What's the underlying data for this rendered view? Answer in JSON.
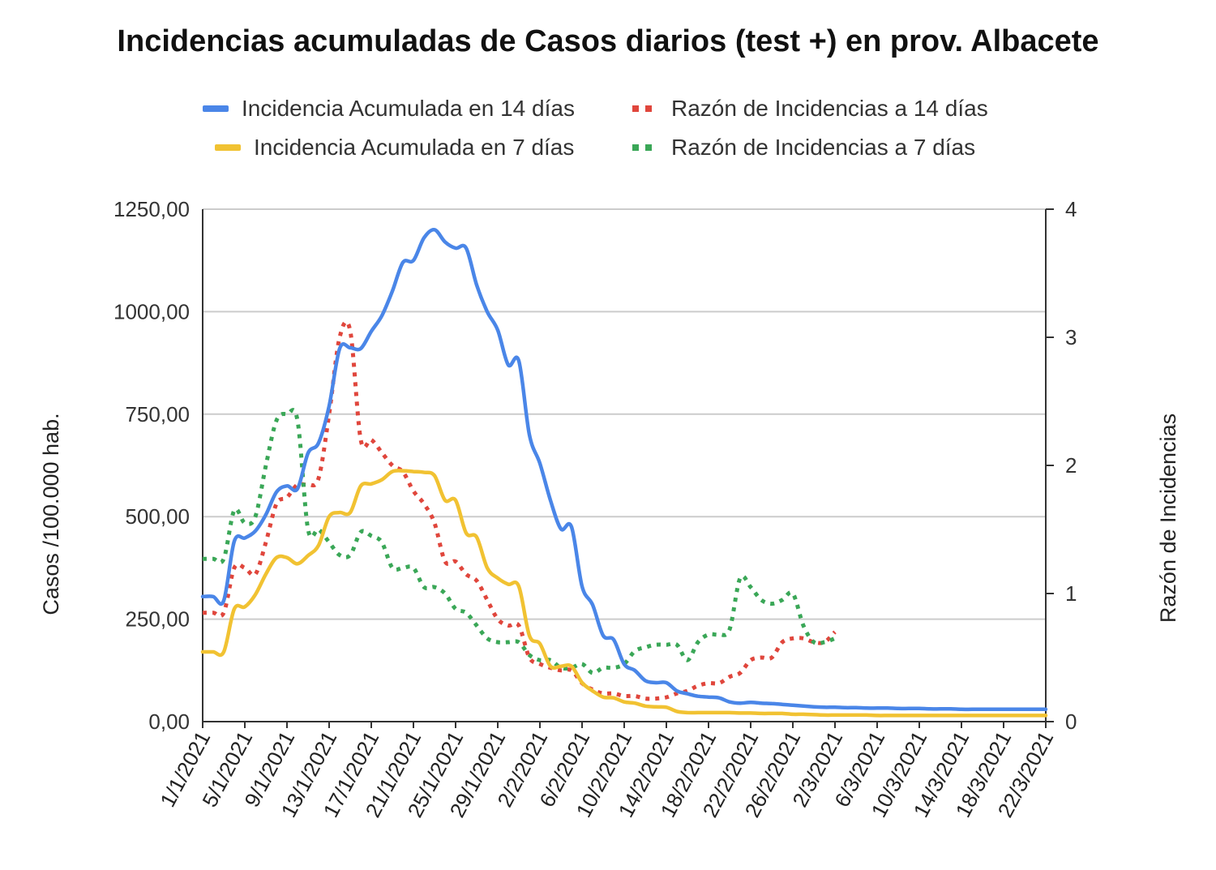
{
  "chart_data": {
    "type": "line",
    "title": "Incidencias acumuladas de Casos diarios (test +) en prov. Albacete",
    "ylabel_left": "Casos /100.000 hab.",
    "ylabel_right": "Razón de Incidencias",
    "yleft_lim": [
      0,
      1250
    ],
    "yright_lim": [
      0,
      4
    ],
    "yleft_ticks": [
      "0,00",
      "250,00",
      "500,00",
      "750,00",
      "1000,00",
      "1250,00"
    ],
    "yright_ticks": [
      "0",
      "1",
      "2",
      "3",
      "4"
    ],
    "x_tick_labels": [
      "1/1/2021",
      "5/1/2021",
      "9/1/2021",
      "13/1/2021",
      "17/1/2021",
      "21/1/2021",
      "25/1/2021",
      "29/1/2021",
      "2/2/2021",
      "6/2/2021",
      "10/2/2021",
      "14/2/2021",
      "18/2/2021",
      "22/2/2021",
      "26/2/2021",
      "2/3/2021",
      "6/3/2021",
      "10/3/2021",
      "14/3/2021",
      "18/3/2021",
      "22/3/2021"
    ],
    "x_start": "1/1/2021",
    "x_end": "22/3/2021",
    "grid": true,
    "legend_position": "top",
    "series": [
      {
        "name": "Incidencia Acumulada en 14 días",
        "axis": "left",
        "style": "solid",
        "color": "#4a86e8",
        "points": [
          [
            0,
            305
          ],
          [
            1,
            305
          ],
          [
            2,
            295
          ],
          [
            3,
            440
          ],
          [
            4,
            448
          ],
          [
            5,
            465
          ],
          [
            6,
            505
          ],
          [
            7,
            560
          ],
          [
            8,
            575
          ],
          [
            9,
            568
          ],
          [
            10,
            655
          ],
          [
            11,
            680
          ],
          [
            12,
            770
          ],
          [
            13,
            910
          ],
          [
            14,
            912
          ],
          [
            15,
            910
          ],
          [
            16,
            952
          ],
          [
            17,
            990
          ],
          [
            18,
            1050
          ],
          [
            19,
            1120
          ],
          [
            20,
            1125
          ],
          [
            21,
            1180
          ],
          [
            22,
            1200
          ],
          [
            23,
            1170
          ],
          [
            24,
            1155
          ],
          [
            25,
            1155
          ],
          [
            26,
            1065
          ],
          [
            27,
            1000
          ],
          [
            28,
            955
          ],
          [
            29,
            870
          ],
          [
            30,
            880
          ],
          [
            31,
            700
          ],
          [
            32,
            630
          ],
          [
            33,
            540
          ],
          [
            34,
            470
          ],
          [
            35,
            475
          ],
          [
            36,
            330
          ],
          [
            37,
            285
          ],
          [
            38,
            210
          ],
          [
            39,
            200
          ],
          [
            40,
            140
          ],
          [
            41,
            125
          ],
          [
            42,
            100
          ],
          [
            43,
            95
          ],
          [
            44,
            95
          ],
          [
            45,
            75
          ],
          [
            46,
            68
          ],
          [
            47,
            62
          ],
          [
            48,
            60
          ],
          [
            49,
            58
          ],
          [
            50,
            48
          ],
          [
            51,
            45
          ],
          [
            52,
            47
          ],
          [
            53,
            45
          ],
          [
            54,
            44
          ],
          [
            55,
            42
          ],
          [
            56,
            40
          ],
          [
            57,
            38
          ],
          [
            58,
            36
          ],
          [
            59,
            35
          ],
          [
            60,
            35
          ],
          [
            61,
            34
          ],
          [
            62,
            34
          ],
          [
            63,
            33
          ],
          [
            64,
            33
          ],
          [
            65,
            33
          ],
          [
            66,
            32
          ],
          [
            67,
            32
          ],
          [
            68,
            32
          ],
          [
            69,
            31
          ],
          [
            70,
            31
          ],
          [
            71,
            31
          ],
          [
            72,
            30
          ],
          [
            73,
            30
          ],
          [
            74,
            30
          ],
          [
            75,
            30
          ],
          [
            76,
            30
          ],
          [
            77,
            30
          ],
          [
            78,
            30
          ],
          [
            79,
            30
          ],
          [
            80,
            30
          ]
        ]
      },
      {
        "name": "Incidencia Acumulada en 7 días",
        "axis": "left",
        "style": "solid",
        "color": "#f1c232",
        "points": [
          [
            0,
            170
          ],
          [
            1,
            170
          ],
          [
            2,
            170
          ],
          [
            3,
            275
          ],
          [
            4,
            280
          ],
          [
            5,
            310
          ],
          [
            6,
            360
          ],
          [
            7,
            400
          ],
          [
            8,
            400
          ],
          [
            9,
            385
          ],
          [
            10,
            405
          ],
          [
            11,
            430
          ],
          [
            12,
            500
          ],
          [
            13,
            510
          ],
          [
            14,
            510
          ],
          [
            15,
            575
          ],
          [
            16,
            580
          ],
          [
            17,
            590
          ],
          [
            18,
            610
          ],
          [
            19,
            612
          ],
          [
            20,
            610
          ],
          [
            21,
            608
          ],
          [
            22,
            600
          ],
          [
            23,
            540
          ],
          [
            24,
            540
          ],
          [
            25,
            460
          ],
          [
            26,
            450
          ],
          [
            27,
            375
          ],
          [
            28,
            350
          ],
          [
            29,
            335
          ],
          [
            30,
            330
          ],
          [
            31,
            210
          ],
          [
            32,
            190
          ],
          [
            33,
            135
          ],
          [
            34,
            135
          ],
          [
            35,
            135
          ],
          [
            36,
            95
          ],
          [
            37,
            75
          ],
          [
            38,
            60
          ],
          [
            39,
            58
          ],
          [
            40,
            48
          ],
          [
            41,
            45
          ],
          [
            42,
            38
          ],
          [
            43,
            36
          ],
          [
            44,
            35
          ],
          [
            45,
            25
          ],
          [
            46,
            22
          ],
          [
            47,
            22
          ],
          [
            48,
            22
          ],
          [
            49,
            22
          ],
          [
            50,
            22
          ],
          [
            51,
            21
          ],
          [
            52,
            21
          ],
          [
            53,
            20
          ],
          [
            54,
            20
          ],
          [
            55,
            20
          ],
          [
            56,
            18
          ],
          [
            57,
            18
          ],
          [
            58,
            17
          ],
          [
            59,
            16
          ],
          [
            60,
            16
          ],
          [
            61,
            16
          ],
          [
            62,
            16
          ],
          [
            63,
            16
          ],
          [
            64,
            15
          ],
          [
            65,
            15
          ],
          [
            66,
            15
          ],
          [
            67,
            15
          ],
          [
            68,
            15
          ],
          [
            69,
            15
          ],
          [
            70,
            15
          ],
          [
            71,
            15
          ],
          [
            72,
            15
          ],
          [
            73,
            15
          ],
          [
            74,
            15
          ],
          [
            75,
            15
          ],
          [
            76,
            15
          ],
          [
            77,
            15
          ],
          [
            78,
            15
          ],
          [
            79,
            15
          ],
          [
            80,
            15
          ]
        ]
      },
      {
        "name": "Razón de Incidencias a 14 días",
        "axis": "right",
        "style": "dotted",
        "color": "#e0463c",
        "points": [
          [
            0,
            0.85
          ],
          [
            1,
            0.85
          ],
          [
            2,
            0.85
          ],
          [
            3,
            1.2
          ],
          [
            4,
            1.2
          ],
          [
            5,
            1.15
          ],
          [
            6,
            1.4
          ],
          [
            7,
            1.7
          ],
          [
            8,
            1.75
          ],
          [
            9,
            1.85
          ],
          [
            10,
            1.85
          ],
          [
            11,
            1.9
          ],
          [
            12,
            2.4
          ],
          [
            13,
            3.0
          ],
          [
            14,
            3.05
          ],
          [
            15,
            2.2
          ],
          [
            16,
            2.2
          ],
          [
            17,
            2.1
          ],
          [
            18,
            2.0
          ],
          [
            19,
            1.95
          ],
          [
            20,
            1.8
          ],
          [
            21,
            1.7
          ],
          [
            22,
            1.55
          ],
          [
            23,
            1.25
          ],
          [
            24,
            1.25
          ],
          [
            25,
            1.15
          ],
          [
            26,
            1.1
          ],
          [
            27,
            0.95
          ],
          [
            28,
            0.8
          ],
          [
            29,
            0.75
          ],
          [
            30,
            0.75
          ],
          [
            31,
            0.5
          ],
          [
            32,
            0.45
          ],
          [
            33,
            0.42
          ],
          [
            34,
            0.4
          ],
          [
            35,
            0.4
          ],
          [
            36,
            0.3
          ],
          [
            37,
            0.25
          ],
          [
            38,
            0.22
          ],
          [
            39,
            0.22
          ],
          [
            40,
            0.2
          ],
          [
            41,
            0.2
          ],
          [
            42,
            0.18
          ],
          [
            43,
            0.18
          ],
          [
            44,
            0.19
          ],
          [
            45,
            0.22
          ],
          [
            46,
            0.24
          ],
          [
            47,
            0.28
          ],
          [
            48,
            0.3
          ],
          [
            49,
            0.3
          ],
          [
            50,
            0.35
          ],
          [
            51,
            0.38
          ],
          [
            52,
            0.48
          ],
          [
            53,
            0.5
          ],
          [
            54,
            0.5
          ],
          [
            55,
            0.62
          ],
          [
            56,
            0.65
          ],
          [
            57,
            0.65
          ],
          [
            58,
            0.62
          ],
          [
            59,
            0.62
          ],
          [
            60,
            0.7
          ]
        ]
      },
      {
        "name": "Razón de Incidencias a 7 días",
        "axis": "right",
        "style": "dotted",
        "color": "#3aa757",
        "points": [
          [
            0,
            1.27
          ],
          [
            1,
            1.27
          ],
          [
            2,
            1.27
          ],
          [
            3,
            1.65
          ],
          [
            4,
            1.55
          ],
          [
            5,
            1.6
          ],
          [
            6,
            2.0
          ],
          [
            7,
            2.35
          ],
          [
            8,
            2.4
          ],
          [
            9,
            2.35
          ],
          [
            10,
            1.5
          ],
          [
            11,
            1.5
          ],
          [
            12,
            1.4
          ],
          [
            13,
            1.3
          ],
          [
            14,
            1.3
          ],
          [
            15,
            1.48
          ],
          [
            16,
            1.45
          ],
          [
            17,
            1.4
          ],
          [
            18,
            1.2
          ],
          [
            19,
            1.2
          ],
          [
            20,
            1.2
          ],
          [
            21,
            1.05
          ],
          [
            22,
            1.05
          ],
          [
            23,
            1.0
          ],
          [
            24,
            0.88
          ],
          [
            25,
            0.85
          ],
          [
            26,
            0.75
          ],
          [
            27,
            0.65
          ],
          [
            28,
            0.62
          ],
          [
            29,
            0.62
          ],
          [
            30,
            0.62
          ],
          [
            31,
            0.52
          ],
          [
            32,
            0.48
          ],
          [
            33,
            0.48
          ],
          [
            34,
            0.42
          ],
          [
            35,
            0.42
          ],
          [
            36,
            0.45
          ],
          [
            37,
            0.38
          ],
          [
            38,
            0.42
          ],
          [
            39,
            0.42
          ],
          [
            40,
            0.45
          ],
          [
            41,
            0.55
          ],
          [
            42,
            0.58
          ],
          [
            43,
            0.6
          ],
          [
            44,
            0.6
          ],
          [
            45,
            0.6
          ],
          [
            46,
            0.48
          ],
          [
            47,
            0.62
          ],
          [
            48,
            0.68
          ],
          [
            49,
            0.68
          ],
          [
            50,
            0.72
          ],
          [
            51,
            1.12
          ],
          [
            52,
            1.05
          ],
          [
            53,
            0.95
          ],
          [
            54,
            0.92
          ],
          [
            55,
            0.95
          ],
          [
            56,
            1.0
          ],
          [
            57,
            0.75
          ],
          [
            58,
            0.62
          ],
          [
            59,
            0.62
          ],
          [
            60,
            0.65
          ]
        ]
      }
    ]
  }
}
